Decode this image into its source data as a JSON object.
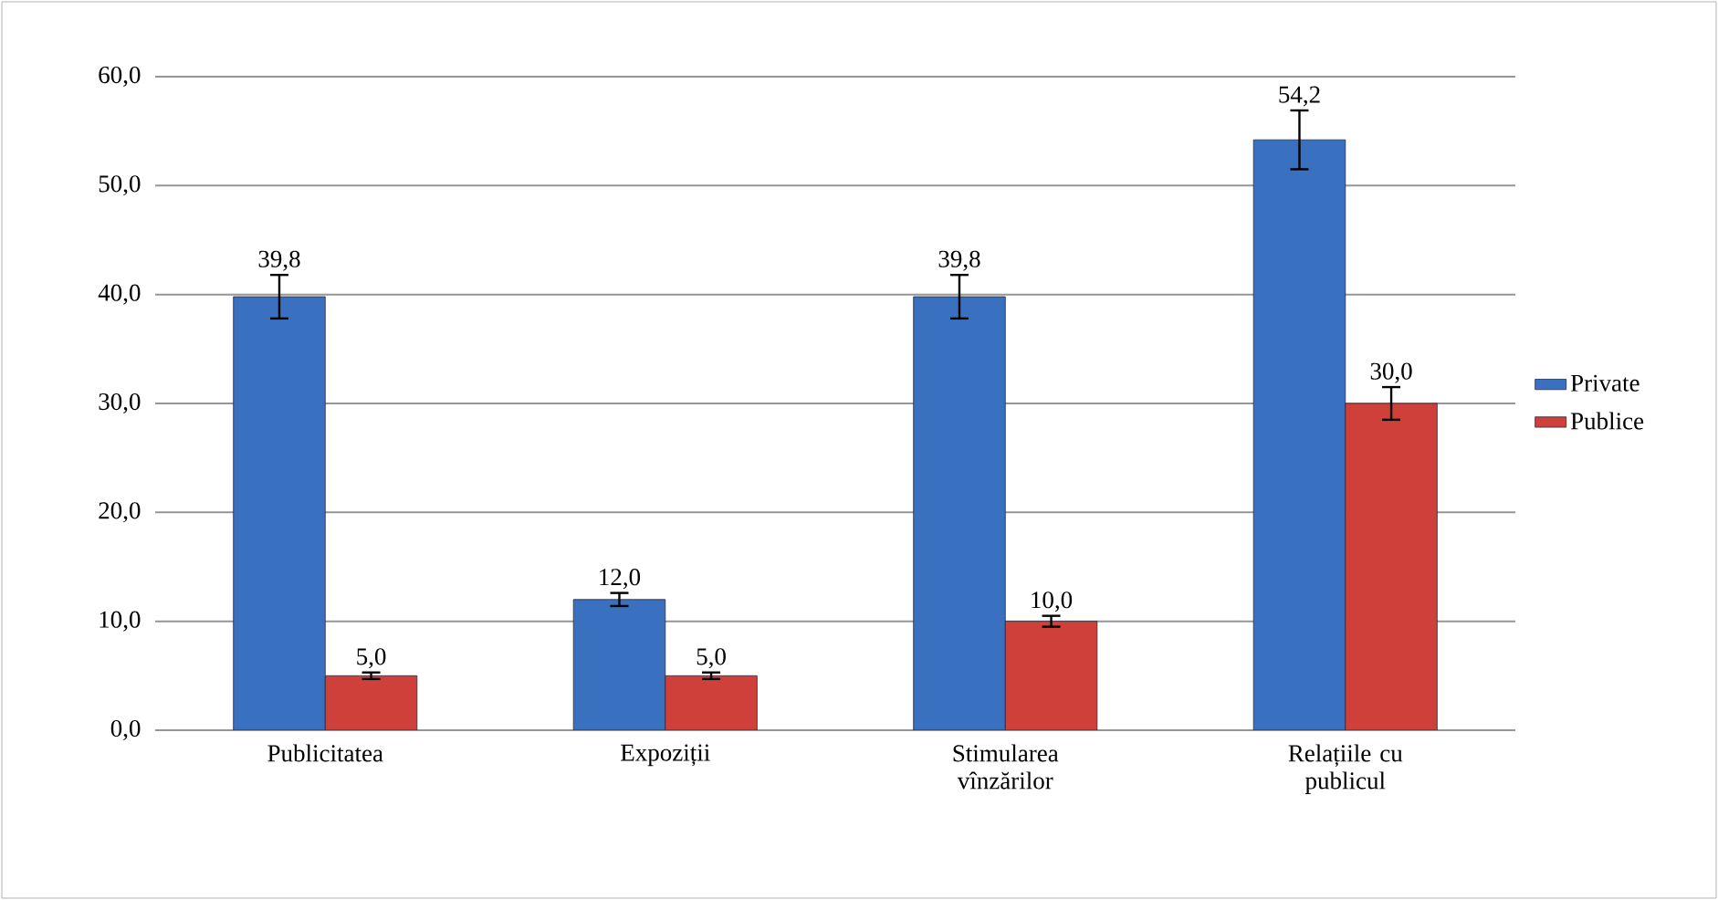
{
  "chart_data": {
    "type": "bar",
    "categories": [
      "Publicitatea",
      "Expoziții",
      "Stimularea vînzărilor",
      "Relațiile cu publicul"
    ],
    "series": [
      {
        "name": "Private",
        "color": "#3a70c0",
        "values": [
          39.8,
          12.0,
          39.8,
          54.2
        ],
        "errors": [
          2.0,
          0.6,
          2.0,
          2.7
        ],
        "value_labels": [
          "39,8",
          "12,0",
          "39,8",
          "54,2"
        ]
      },
      {
        "name": "Publice",
        "color": "#d0403a",
        "values": [
          5.0,
          5.0,
          10.0,
          30.0
        ],
        "errors": [
          0.3,
          0.3,
          0.5,
          1.5
        ],
        "value_labels": [
          "5,0",
          "5,0",
          "10,0",
          "30,0"
        ]
      }
    ],
    "ylim": [
      0,
      60
    ],
    "yticks": [
      {
        "value": 0,
        "label": "0,0"
      },
      {
        "value": 10,
        "label": "10,0"
      },
      {
        "value": 20,
        "label": "20,0"
      },
      {
        "value": 30,
        "label": "30,0"
      },
      {
        "value": 40,
        "label": "40,0"
      },
      {
        "value": 50,
        "label": "50,0"
      },
      {
        "value": 60,
        "label": "60,0"
      }
    ],
    "grid": "y",
    "legend": "right"
  }
}
